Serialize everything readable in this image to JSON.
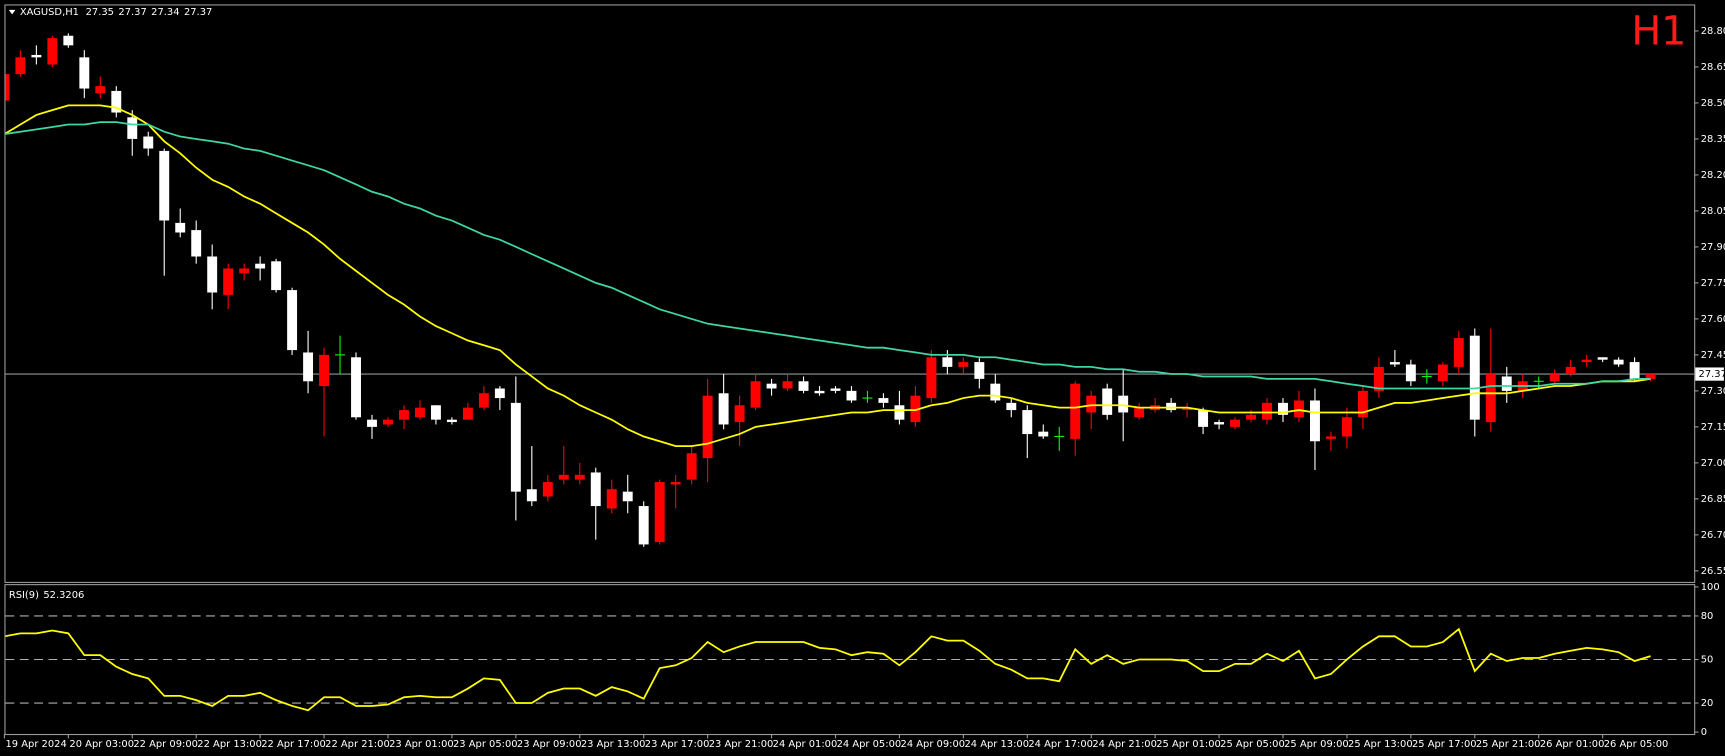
{
  "chart_data": [
    {
      "type": "candlestick",
      "title": "XAGUSD,H1",
      "timeframe_label": "H1",
      "categories": [
        "19 Apr 2024",
        null,
        null,
        null,
        "20 Apr 03:00",
        null,
        null,
        null,
        "22 Apr 09:00",
        null,
        null,
        null,
        "22 Apr 13:00",
        null,
        null,
        null,
        "22 Apr 17:00",
        null,
        null,
        null,
        "22 Apr 21:00",
        null,
        null,
        null,
        "23 Apr 01:00",
        null,
        null,
        null,
        "23 Apr 05:00",
        null,
        null,
        null,
        "23 Apr 09:00",
        null,
        null,
        null,
        "23 Apr 13:00",
        null,
        null,
        null,
        "23 Apr 17:00",
        null,
        null,
        null,
        "23 Apr 21:00",
        null,
        null,
        null,
        "24 Apr 01:00",
        null,
        null,
        null,
        "24 Apr 05:00",
        null,
        null,
        null,
        "24 Apr 09:00",
        null,
        null,
        null,
        "24 Apr 13:00",
        null,
        null,
        null,
        "24 Apr 17:00",
        null,
        null,
        null,
        "24 Apr 21:00",
        null,
        null,
        null,
        "25 Apr 01:00",
        null,
        null,
        null,
        "25 Apr 05:00",
        null,
        null,
        null,
        "25 Apr 09:00",
        null,
        null,
        null,
        "25 Apr 13:00",
        null,
        null,
        null,
        "25 Apr 17:00",
        null,
        null,
        null,
        "25 Apr 21:00",
        null,
        null,
        null,
        "26 Apr 01:00",
        null,
        null,
        null,
        "26 Apr 05:00",
        null,
        null,
        null
      ],
      "open": [
        28.51,
        28.62,
        28.7,
        28.66,
        28.78,
        28.69,
        28.54,
        28.55,
        28.44,
        28.36,
        28.3,
        28.0,
        27.97,
        27.86,
        27.7,
        27.79,
        27.83,
        27.84,
        27.72,
        27.46,
        27.32,
        27.45,
        27.44,
        27.18,
        27.16,
        27.18,
        27.19,
        27.24,
        27.18,
        27.18,
        27.23,
        27.31,
        27.25,
        26.89,
        26.86,
        26.93,
        26.93,
        26.96,
        26.81,
        26.88,
        26.82,
        26.67,
        26.91,
        26.93,
        27.02,
        27.29,
        27.17,
        27.23,
        27.33,
        27.31,
        27.34,
        27.3,
        27.31,
        27.3,
        27.27,
        27.27,
        27.24,
        27.17,
        27.27,
        27.44,
        27.4,
        27.42,
        27.33,
        27.25,
        27.22,
        27.13,
        27.11,
        27.1,
        27.21,
        27.31,
        27.28,
        27.19,
        27.22,
        27.25,
        27.22,
        27.22,
        27.17,
        27.15,
        27.18,
        27.18,
        27.25,
        27.19,
        27.26,
        27.1,
        27.11,
        27.19,
        27.3,
        27.42,
        27.41,
        27.36,
        27.34,
        27.4,
        27.53,
        27.17,
        27.36,
        27.3,
        27.34,
        27.34,
        27.37,
        27.42,
        27.44,
        27.43,
        27.42,
        27.35
      ],
      "high": [
        28.68,
        28.72,
        28.74,
        28.78,
        28.79,
        28.72,
        28.61,
        28.57,
        28.47,
        28.38,
        28.31,
        28.06,
        28.01,
        27.91,
        27.83,
        27.83,
        27.86,
        27.85,
        27.73,
        27.55,
        27.48,
        27.53,
        27.46,
        27.2,
        27.19,
        27.24,
        27.26,
        27.24,
        27.19,
        27.25,
        27.32,
        27.32,
        27.36,
        27.07,
        26.95,
        27.07,
        27.0,
        26.98,
        26.93,
        26.95,
        26.84,
        26.93,
        26.95,
        27.07,
        27.35,
        27.37,
        27.28,
        27.37,
        27.35,
        27.37,
        27.36,
        27.32,
        27.32,
        27.32,
        27.3,
        27.29,
        27.3,
        27.32,
        27.47,
        27.47,
        27.44,
        27.44,
        27.37,
        27.27,
        27.24,
        27.16,
        27.15,
        27.34,
        27.3,
        27.33,
        27.39,
        27.25,
        27.27,
        27.27,
        27.25,
        27.23,
        27.18,
        27.19,
        27.22,
        27.27,
        27.27,
        27.3,
        27.31,
        27.13,
        27.23,
        27.32,
        27.44,
        27.47,
        27.43,
        27.39,
        27.42,
        27.55,
        27.56,
        27.56,
        27.4,
        27.37,
        27.36,
        27.39,
        27.43,
        27.45,
        27.44,
        27.44,
        27.44,
        27.37
      ],
      "low": [
        28.47,
        28.61,
        28.66,
        28.65,
        28.73,
        28.52,
        28.52,
        28.44,
        28.28,
        28.28,
        27.78,
        27.94,
        27.83,
        27.64,
        27.64,
        27.76,
        27.76,
        27.71,
        27.45,
        27.29,
        27.11,
        27.37,
        27.18,
        27.1,
        27.15,
        27.14,
        27.18,
        27.16,
        27.16,
        27.18,
        27.22,
        27.22,
        26.76,
        26.82,
        26.84,
        26.91,
        26.91,
        26.68,
        26.79,
        26.79,
        26.65,
        26.66,
        26.81,
        26.91,
        26.92,
        27.14,
        27.07,
        27.22,
        27.28,
        27.3,
        27.29,
        27.28,
        27.29,
        27.25,
        27.25,
        27.23,
        27.16,
        27.15,
        27.25,
        27.37,
        27.37,
        27.31,
        27.25,
        27.19,
        27.02,
        27.1,
        27.05,
        27.03,
        27.14,
        27.18,
        27.09,
        27.18,
        27.21,
        27.21,
        27.19,
        27.12,
        27.14,
        27.14,
        27.17,
        27.16,
        27.17,
        27.17,
        26.97,
        27.05,
        27.06,
        27.14,
        27.27,
        27.4,
        27.32,
        27.33,
        27.32,
        27.37,
        27.11,
        27.13,
        27.25,
        27.27,
        27.31,
        27.32,
        27.36,
        27.4,
        27.42,
        27.4,
        27.34,
        27.34
      ],
      "close": [
        28.62,
        28.69,
        28.69,
        28.77,
        28.74,
        28.56,
        28.57,
        28.46,
        28.35,
        28.31,
        28.01,
        27.96,
        27.86,
        27.71,
        27.81,
        27.81,
        27.81,
        27.72,
        27.47,
        27.34,
        27.45,
        27.45,
        27.19,
        27.15,
        27.18,
        27.22,
        27.23,
        27.18,
        27.17,
        27.23,
        27.29,
        27.27,
        26.88,
        26.84,
        26.92,
        26.95,
        26.95,
        26.82,
        26.89,
        26.84,
        26.66,
        26.92,
        26.92,
        27.04,
        27.28,
        27.16,
        27.24,
        27.34,
        27.31,
        27.34,
        27.3,
        27.29,
        27.3,
        27.26,
        27.27,
        27.25,
        27.18,
        27.28,
        27.44,
        27.4,
        27.42,
        27.35,
        27.26,
        27.22,
        27.12,
        27.11,
        27.11,
        27.33,
        27.28,
        27.2,
        27.21,
        27.23,
        27.24,
        27.22,
        27.23,
        27.15,
        27.16,
        27.18,
        27.2,
        27.25,
        27.2,
        27.26,
        27.09,
        27.11,
        27.19,
        27.3,
        27.4,
        27.41,
        27.34,
        27.36,
        27.41,
        27.52,
        27.18,
        27.37,
        27.3,
        27.34,
        27.34,
        27.37,
        27.4,
        27.43,
        27.43,
        27.41,
        27.35,
        27.37
      ],
      "up_color": "#ff0000",
      "down_color": "#ffffff",
      "doji_color": "#00ff00",
      "last_price_line_color": "#8a9a9a",
      "series": [
        {
          "color": "#ffff00",
          "values": [
            28.37,
            28.41,
            28.45,
            28.47,
            28.49,
            28.49,
            28.49,
            28.48,
            28.45,
            28.41,
            28.34,
            28.29,
            28.23,
            28.18,
            28.15,
            28.11,
            28.08,
            28.04,
            28.0,
            27.96,
            27.91,
            27.85,
            27.8,
            27.75,
            27.7,
            27.66,
            27.61,
            27.57,
            27.54,
            27.51,
            27.49,
            27.47,
            27.41,
            27.36,
            27.31,
            27.28,
            27.24,
            27.21,
            27.18,
            27.14,
            27.11,
            27.09,
            27.07,
            27.07,
            27.08,
            27.1,
            27.12,
            27.15,
            27.16,
            27.17,
            27.18,
            27.19,
            27.2,
            27.21,
            27.21,
            27.22,
            27.22,
            27.22,
            27.24,
            27.25,
            27.27,
            27.28,
            27.28,
            27.27,
            27.25,
            27.24,
            27.23,
            27.23,
            27.24,
            27.24,
            27.24,
            27.23,
            27.23,
            27.23,
            27.23,
            27.22,
            27.21,
            27.21,
            27.21,
            27.21,
            27.21,
            27.22,
            27.21,
            27.21,
            27.21,
            27.21,
            27.23,
            27.25,
            27.25,
            27.26,
            27.27,
            27.28,
            27.29,
            27.29,
            27.29,
            27.3,
            27.31,
            27.32,
            27.32,
            27.33,
            27.34,
            27.34,
            27.34,
            27.35
          ]
        },
        {
          "color": "#3fd6a6",
          "values": [
            28.37,
            28.38,
            28.39,
            28.4,
            28.41,
            28.41,
            28.42,
            28.42,
            28.41,
            28.41,
            28.38,
            28.36,
            28.35,
            28.34,
            28.33,
            28.31,
            28.3,
            28.28,
            28.26,
            28.24,
            28.22,
            28.19,
            28.16,
            28.13,
            28.11,
            28.08,
            28.06,
            28.03,
            28.01,
            27.98,
            27.95,
            27.93,
            27.9,
            27.87,
            27.84,
            27.81,
            27.78,
            27.75,
            27.73,
            27.7,
            27.67,
            27.64,
            27.62,
            27.6,
            27.58,
            27.57,
            27.56,
            27.55,
            27.54,
            27.53,
            27.52,
            27.51,
            27.5,
            27.49,
            27.48,
            27.48,
            27.47,
            27.46,
            27.45,
            27.45,
            27.45,
            27.44,
            27.44,
            27.43,
            27.42,
            27.41,
            27.41,
            27.4,
            27.4,
            27.39,
            27.39,
            27.38,
            27.38,
            27.37,
            27.37,
            27.36,
            27.36,
            27.36,
            27.36,
            27.35,
            27.35,
            27.35,
            27.35,
            27.34,
            27.33,
            27.32,
            27.31,
            27.31,
            27.31,
            27.31,
            27.31,
            27.31,
            27.31,
            27.32,
            27.32,
            27.32,
            27.32,
            27.33,
            27.33,
            27.33,
            27.34,
            27.34,
            27.35,
            27.35
          ]
        }
      ],
      "ylim": [
        26.504,
        28.906
      ],
      "yticks": [
        {
          "value": 28.8,
          "label": "28.80"
        },
        {
          "value": 28.65,
          "label": "28.65"
        },
        {
          "value": 28.5,
          "label": "28.50"
        },
        {
          "value": 28.35,
          "label": "28.35"
        },
        {
          "value": 28.2,
          "label": "28.20"
        },
        {
          "value": 28.05,
          "label": "28.05"
        },
        {
          "value": 27.9,
          "label": "27.90"
        },
        {
          "value": 27.75,
          "label": "27.75"
        },
        {
          "value": 27.6,
          "label": "27.60"
        },
        {
          "value": 27.45,
          "label": "27.45"
        },
        {
          "value": 27.3,
          "label": "27.30"
        },
        {
          "value": 27.15,
          "label": "27.15"
        },
        {
          "value": 27.0,
          "label": "27.00"
        },
        {
          "value": 26.85,
          "label": "26.85"
        },
        {
          "value": 26.7,
          "label": "26.70"
        },
        {
          "value": 26.55,
          "label": "26.55"
        }
      ]
    },
    {
      "type": "line",
      "title": "RSI(9)",
      "color": "#ffff00",
      "values": [
        66,
        68,
        68,
        70,
        68,
        53,
        53,
        45,
        40,
        37,
        25,
        25,
        22,
        18,
        25,
        25,
        27,
        22,
        18,
        15,
        24,
        24,
        18,
        18,
        19,
        24,
        25,
        24,
        24,
        30,
        37,
        36,
        20,
        20,
        27,
        30,
        30,
        25,
        31,
        28,
        23,
        44,
        46,
        51,
        62,
        55,
        59,
        62,
        62,
        62,
        62,
        58,
        57,
        53,
        55,
        54,
        46,
        55,
        66,
        63,
        63,
        56,
        47,
        43,
        37,
        37,
        35,
        57,
        47,
        53,
        47,
        50,
        50,
        50,
        49,
        42,
        42,
        47,
        47,
        54,
        49,
        56,
        37,
        40,
        50,
        59,
        66,
        66,
        59,
        59,
        62,
        71,
        42,
        54,
        49,
        51,
        51,
        54,
        56,
        58,
        57,
        55,
        49,
        52.3206
      ],
      "ylim": [
        -1.3,
        101.2
      ],
      "yticks": [
        100,
        80,
        50,
        20,
        0
      ],
      "levels": [
        80,
        50,
        20
      ]
    }
  ]
}
